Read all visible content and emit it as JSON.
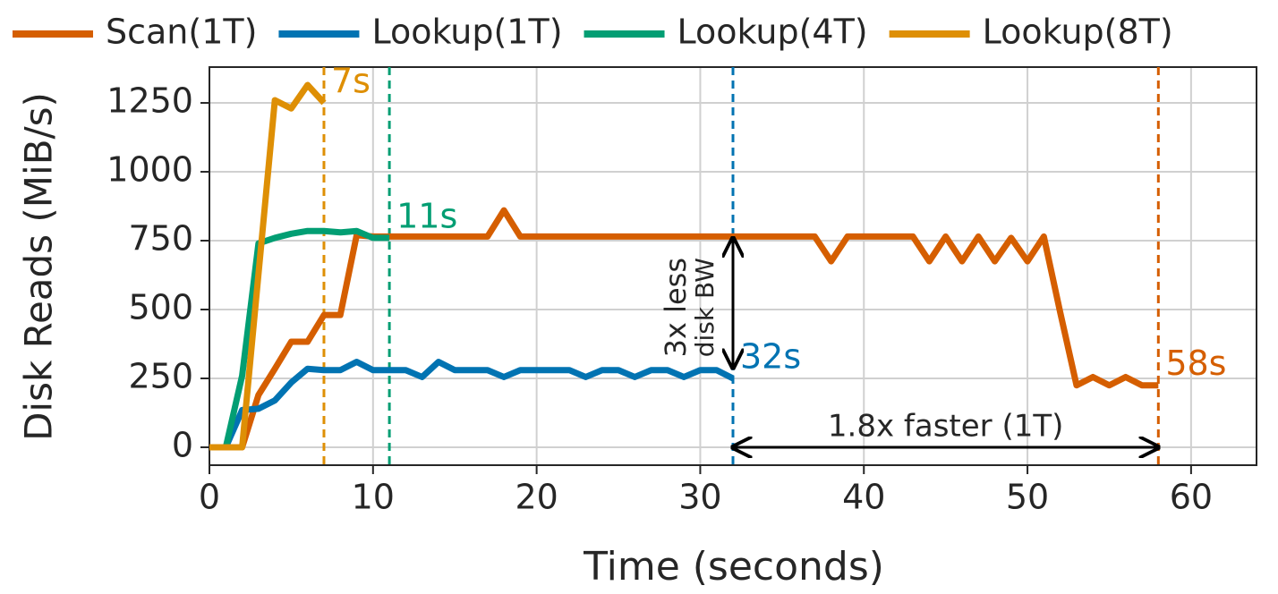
{
  "chart_data": {
    "type": "line",
    "xlabel": "Time (seconds)",
    "ylabel": "Disk Reads (MiB/s)",
    "xlim": [
      0,
      64
    ],
    "ylim": [
      -65,
      1380
    ],
    "xticks": [
      0,
      10,
      20,
      30,
      40,
      50,
      60
    ],
    "yticks": [
      0,
      250,
      500,
      750,
      1000,
      1250
    ],
    "grid": true,
    "legend": "top",
    "series": [
      {
        "name": "Scan(1T)",
        "color": "#d55e00",
        "end_label": "58s",
        "x": [
          0,
          1,
          2,
          3,
          4,
          5,
          6,
          7,
          8,
          9,
          10,
          11,
          12,
          13,
          14,
          15,
          16,
          17,
          18,
          19,
          20,
          21,
          22,
          23,
          24,
          25,
          26,
          27,
          28,
          29,
          30,
          31,
          32,
          33,
          34,
          35,
          36,
          37,
          38,
          39,
          40,
          41,
          42,
          43,
          44,
          45,
          46,
          47,
          48,
          49,
          50,
          51,
          52,
          53,
          54,
          55,
          56,
          57,
          58
        ],
        "values": [
          0,
          0,
          0,
          190,
          285,
          383,
          383,
          480,
          480,
          770,
          765,
          765,
          765,
          765,
          765,
          765,
          765,
          765,
          860,
          765,
          765,
          765,
          765,
          765,
          765,
          765,
          765,
          765,
          765,
          765,
          765,
          765,
          765,
          765,
          765,
          765,
          765,
          765,
          675,
          765,
          765,
          765,
          765,
          765,
          675,
          765,
          675,
          765,
          675,
          760,
          675,
          765,
          490,
          225,
          255,
          225,
          255,
          225,
          225
        ]
      },
      {
        "name": "Lookup(1T)",
        "color": "#0173b2",
        "end_label": "32s",
        "x": [
          0,
          1,
          2,
          3,
          4,
          5,
          6,
          7,
          8,
          9,
          10,
          11,
          12,
          13,
          14,
          15,
          16,
          17,
          18,
          19,
          20,
          21,
          22,
          23,
          24,
          25,
          26,
          27,
          28,
          29,
          30,
          31,
          32
        ],
        "values": [
          0,
          0,
          135,
          140,
          170,
          235,
          285,
          280,
          280,
          310,
          280,
          280,
          280,
          255,
          310,
          280,
          280,
          280,
          255,
          280,
          280,
          280,
          280,
          255,
          280,
          280,
          255,
          280,
          280,
          255,
          280,
          280,
          250
        ]
      },
      {
        "name": "Lookup(4T)",
        "color": "#029e73",
        "end_label": "11s",
        "x": [
          0,
          1,
          2,
          3,
          4,
          5,
          6,
          7,
          8,
          9,
          10,
          11
        ],
        "values": [
          0,
          0,
          260,
          740,
          760,
          775,
          785,
          785,
          780,
          785,
          760,
          760
        ]
      },
      {
        "name": "Lookup(8T)",
        "color": "#de8f05",
        "end_label": "7s",
        "x": [
          0,
          1,
          2,
          3,
          4,
          5,
          6,
          7
        ],
        "values": [
          0,
          0,
          0,
          630,
          1260,
          1230,
          1315,
          1250
        ]
      }
    ],
    "annotations": [
      "3x less",
      "disk BW",
      "1.8x faster (1T)"
    ]
  }
}
